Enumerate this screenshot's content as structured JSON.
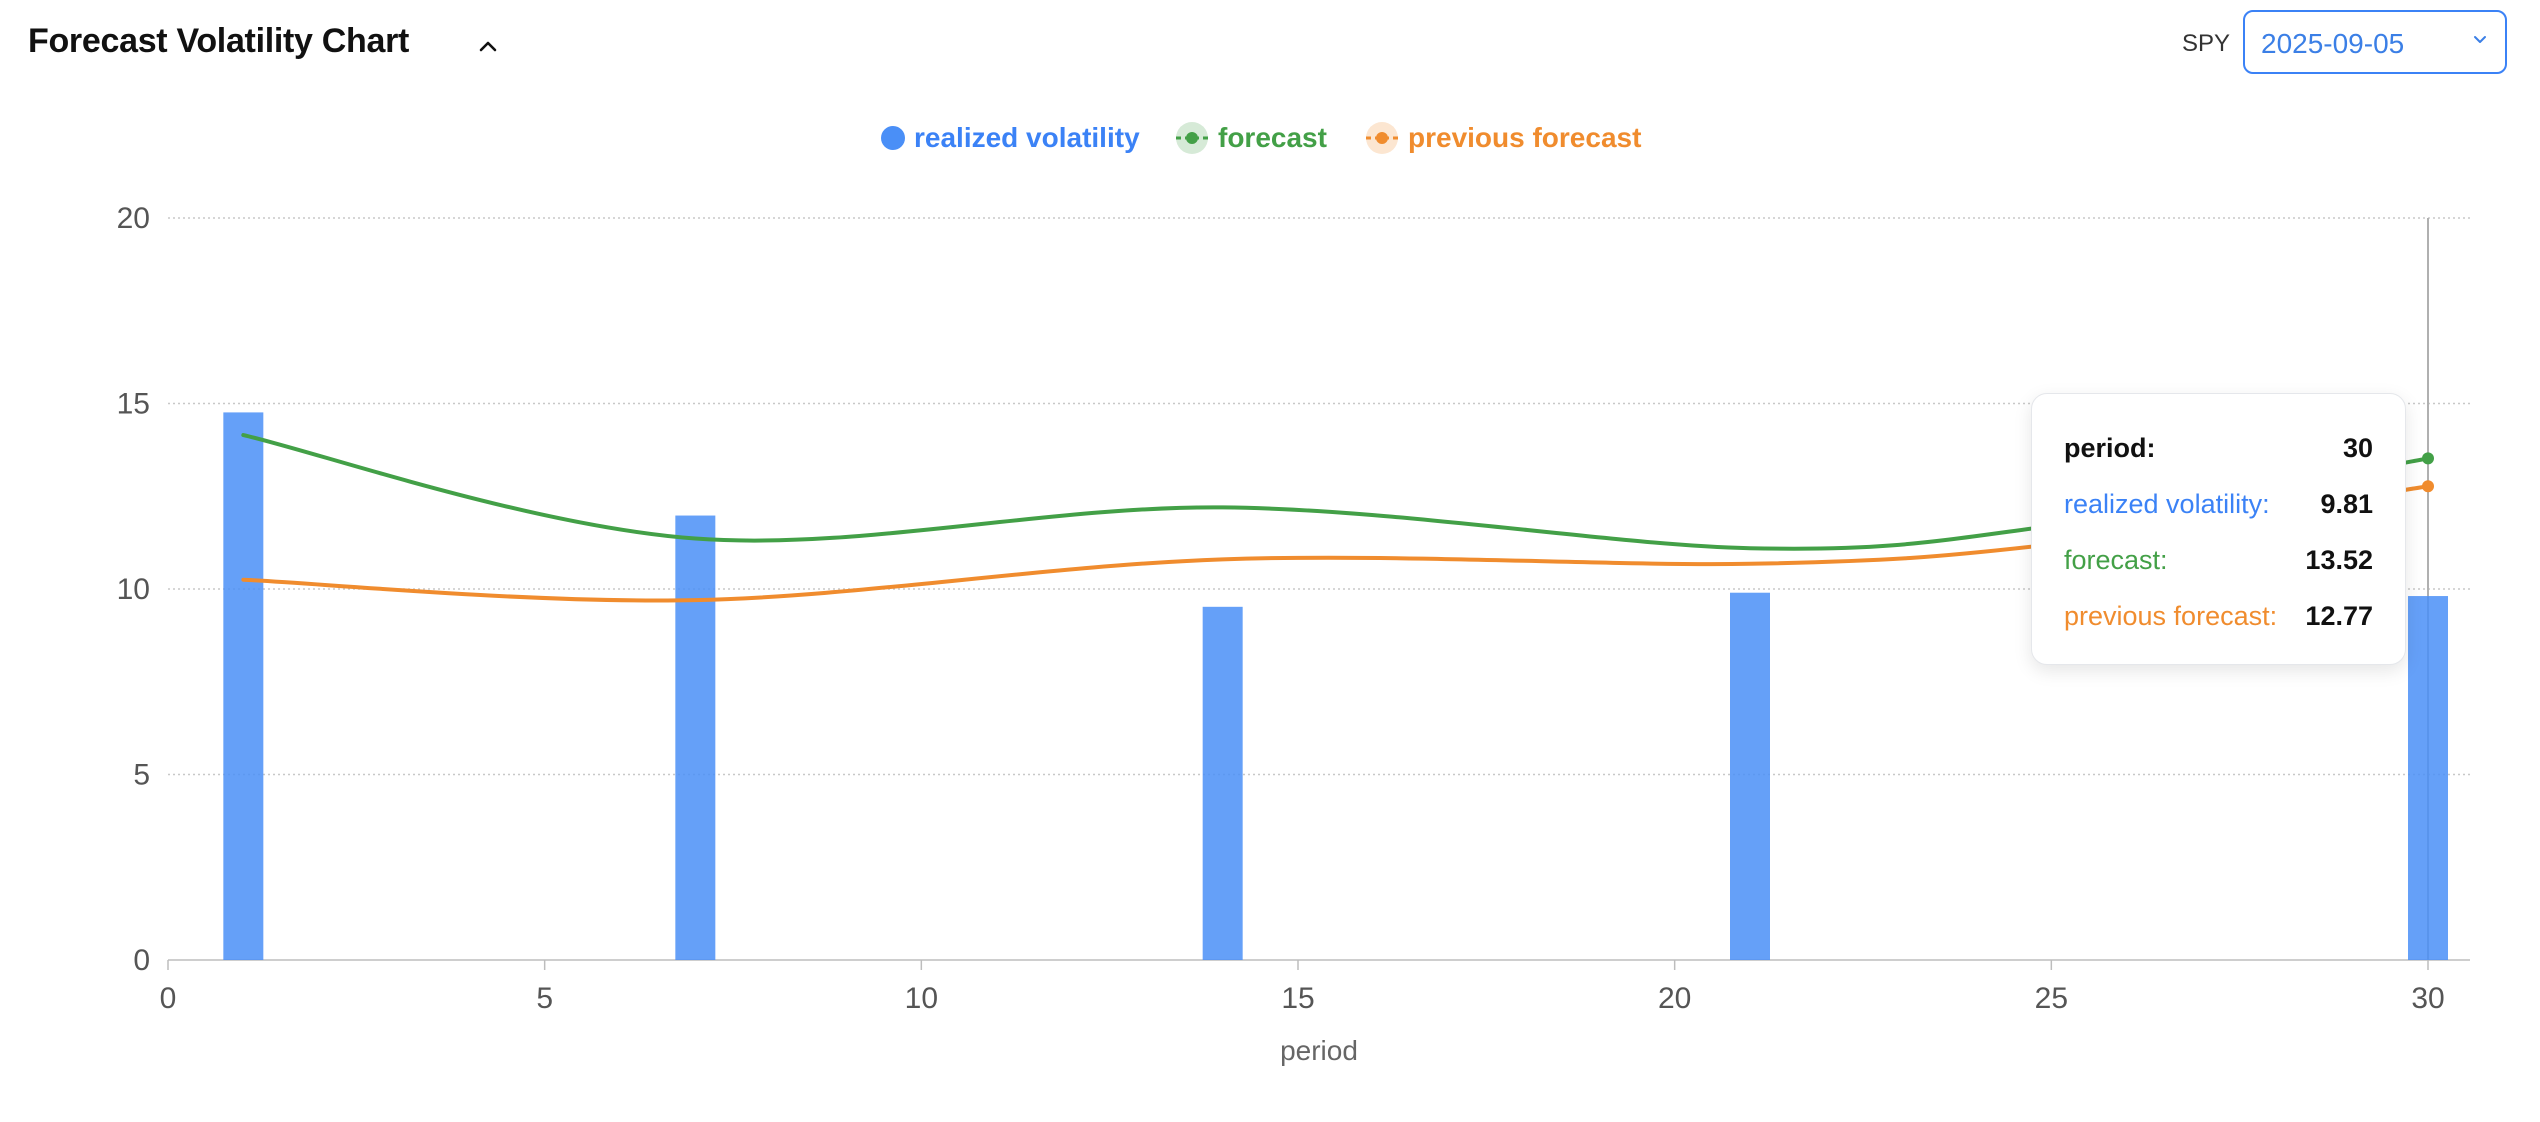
{
  "header": {
    "title": "Forecast Volatility Chart",
    "ticker": "SPY",
    "date_value": "2025-09-05"
  },
  "colors": {
    "realized": "#4a8ff7",
    "forecast": "#43a047",
    "previous": "#f08c2e",
    "grid": "#c8c8c8",
    "axis_text": "#555555"
  },
  "icons": {
    "collapse": "chevron-up-icon",
    "select": "chevron-down-icon"
  },
  "legend": {
    "realized": "realized volatility",
    "forecast": "forecast",
    "previous": "previous forecast"
  },
  "tooltip": {
    "period_label": "period:",
    "period_value": "30",
    "realized_label": "realized volatility:",
    "realized_value": "9.81",
    "forecast_label": "forecast:",
    "forecast_value": "13.52",
    "previous_label": "previous forecast:",
    "previous_value": "12.77"
  },
  "chart_data": {
    "type": "bar",
    "title": "Forecast Volatility Chart",
    "xlabel": "period",
    "ylabel": "",
    "xlim": [
      0,
      30
    ],
    "ylim": [
      0,
      20
    ],
    "xticks": [
      0,
      5,
      10,
      15,
      20,
      25,
      30
    ],
    "yticks": [
      0,
      5,
      10,
      15,
      20
    ],
    "grid": true,
    "legend_position": "top-center",
    "hover_x": 30,
    "series": [
      {
        "name": "realized volatility",
        "type": "bar",
        "x": [
          1,
          7,
          14,
          21,
          30
        ],
        "values": [
          14.76,
          11.98,
          9.52,
          9.9,
          9.81
        ]
      },
      {
        "name": "forecast",
        "type": "line",
        "x": [
          1,
          7,
          14,
          21,
          25,
          30
        ],
        "values": [
          14.15,
          11.36,
          12.2,
          11.1,
          11.7,
          13.52
        ]
      },
      {
        "name": "previous forecast",
        "type": "line",
        "x": [
          1,
          7,
          14,
          21,
          25,
          30
        ],
        "values": [
          10.25,
          9.7,
          10.8,
          10.68,
          11.2,
          12.77
        ]
      }
    ]
  }
}
